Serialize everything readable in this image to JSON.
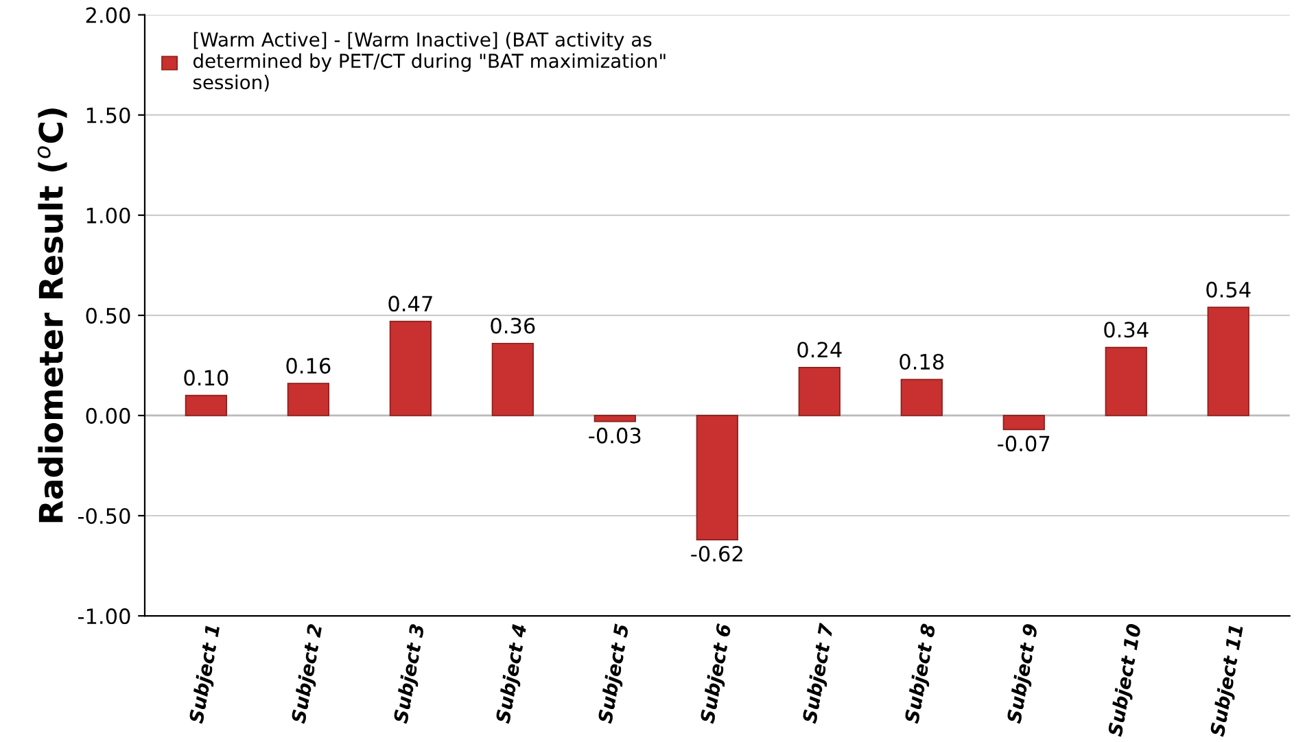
{
  "chart_data": {
    "type": "bar",
    "ylabel": "Radiometer Result ($^{o}$C)",
    "categories": [
      "Subject 1",
      "Subject 2",
      "Subject 3",
      "Subject 4",
      "Subject 5",
      "Subject 6",
      "Subject 7",
      "Subject 8",
      "Subject 9",
      "Subject 10",
      "Subject 11"
    ],
    "series": [
      {
        "name": "[Warm Active] - [Warm Inactive] (BAT activity as\ndetermined by PET/CT during \"BAT maximization\"\nsession)",
        "color": "#c8312f",
        "values": [
          0.1,
          0.16,
          0.47,
          0.36,
          -0.03,
          -0.62,
          0.24,
          0.18,
          -0.07,
          0.34,
          0.54
        ],
        "value_labels": [
          "0.10",
          "0.16",
          "0.47",
          "0.36",
          "-0.03",
          "-0.62",
          "0.24",
          "0.18",
          "-0.07",
          "0.34",
          "0.54"
        ]
      }
    ],
    "ylim": [
      -1,
      2
    ],
    "yticks": [
      {
        "value": -1,
        "label": "-1.00"
      },
      {
        "value": -0.5,
        "label": "-0.50"
      },
      {
        "value": 0,
        "label": "0.00"
      },
      {
        "value": 0.5,
        "label": "0.50"
      },
      {
        "value": 1,
        "label": "1.00"
      },
      {
        "value": 1.5,
        "label": "1.50"
      },
      {
        "value": 2,
        "label": "2.00"
      }
    ],
    "grid": "y",
    "legend": "top left"
  }
}
